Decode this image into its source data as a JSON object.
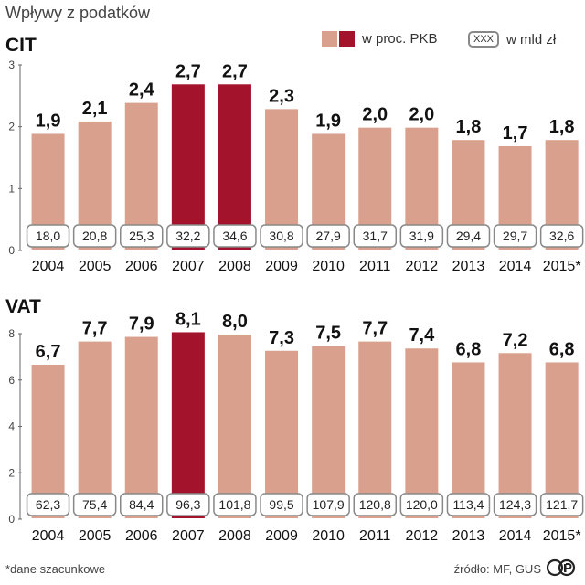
{
  "title": "Wpływy z podatków",
  "legend": {
    "pkb_label": "w proc. PKB",
    "xxx_box": "XXX",
    "mld_label": "w mld zł"
  },
  "colors": {
    "bar_normal": "#d9a08d",
    "bar_highlight": "#a3132b",
    "axis": "#555555"
  },
  "footer": {
    "note": "*dane szacunkowe",
    "source": "źródło: MF, GUS"
  },
  "chart_data": [
    {
      "type": "bar",
      "title": "CIT",
      "categories": [
        "2004",
        "2005",
        "2006",
        "2007",
        "2008",
        "2009",
        "2010",
        "2011",
        "2012",
        "2013",
        "2014",
        "2015*"
      ],
      "series": [
        {
          "name": "w proc. PKB",
          "values": [
            1.9,
            2.1,
            2.4,
            2.7,
            2.7,
            2.3,
            1.9,
            2.0,
            2.0,
            1.8,
            1.7,
            1.8
          ],
          "labels": [
            "1,9",
            "2,1",
            "2,4",
            "2,7",
            "2,7",
            "2,3",
            "1,9",
            "2,0",
            "2,0",
            "1,8",
            "1,7",
            "1,8"
          ]
        },
        {
          "name": "w mld zł",
          "values": [
            18.0,
            20.8,
            25.3,
            32.2,
            34.6,
            30.8,
            27.9,
            31.7,
            31.9,
            29.4,
            29.7,
            32.6
          ],
          "labels": [
            "18,0",
            "20,8",
            "25,3",
            "32,2",
            "34,6",
            "30,8",
            "27,9",
            "31,7",
            "31,9",
            "29,4",
            "29,7",
            "32,6"
          ]
        }
      ],
      "highlight": [
        false,
        false,
        false,
        true,
        true,
        false,
        false,
        false,
        false,
        false,
        false,
        false
      ],
      "ylim": [
        0,
        3
      ],
      "yticks": [
        0,
        1,
        2,
        3
      ]
    },
    {
      "type": "bar",
      "title": "VAT",
      "categories": [
        "2004",
        "2005",
        "2006",
        "2007",
        "2008",
        "2009",
        "2010",
        "2011",
        "2012",
        "2013",
        "2014",
        "2015*"
      ],
      "series": [
        {
          "name": "w proc. PKB",
          "values": [
            6.7,
            7.7,
            7.9,
            8.1,
            8.0,
            7.3,
            7.5,
            7.7,
            7.4,
            6.8,
            7.2,
            6.8
          ],
          "labels": [
            "6,7",
            "7,7",
            "7,9",
            "8,1",
            "8,0",
            "7,3",
            "7,5",
            "7,7",
            "7,4",
            "6,8",
            "7,2",
            "6,8"
          ]
        },
        {
          "name": "w mld zł",
          "values": [
            62.3,
            75.4,
            84.4,
            96.3,
            101.8,
            99.5,
            107.9,
            120.8,
            120.0,
            113.4,
            124.3,
            121.7
          ],
          "labels": [
            "62,3",
            "75,4",
            "84,4",
            "96,3",
            "101,8",
            "99,5",
            "107,9",
            "120,8",
            "120,0",
            "113,4",
            "124,3",
            "121,7"
          ]
        }
      ],
      "highlight": [
        false,
        false,
        false,
        true,
        false,
        false,
        false,
        false,
        false,
        false,
        false,
        false
      ],
      "ylim": [
        0,
        8
      ],
      "yticks": [
        0,
        2,
        4,
        6,
        8
      ]
    }
  ]
}
